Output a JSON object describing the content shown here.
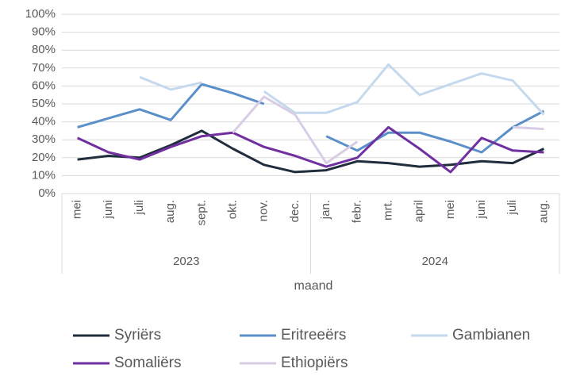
{
  "chart_data": {
    "type": "line",
    "x_label": "maand",
    "categories": [
      "mei",
      "juni",
      "juli",
      "aug.",
      "sept.",
      "okt.",
      "nov.",
      "dec.",
      "jan.",
      "febr.",
      "mrt.",
      "april",
      "mei",
      "juni",
      "juli",
      "aug."
    ],
    "years": [
      "2023",
      "2024"
    ],
    "series": [
      {
        "name": "Syriërs",
        "color": "#1f2d3d",
        "values": [
          19,
          21,
          20,
          27,
          35,
          25,
          16,
          12,
          13,
          18,
          17,
          15,
          16,
          18,
          17,
          25
        ]
      },
      {
        "name": "Eritreeërs",
        "color": "#5b8fc9",
        "values": [
          37,
          42,
          47,
          41,
          61,
          56,
          50,
          null,
          32,
          24,
          34,
          34,
          29,
          23,
          37,
          46
        ]
      },
      {
        "name": "Gambianen",
        "color": "#c5d9ee",
        "values": [
          null,
          null,
          65,
          58,
          62,
          null,
          57,
          45,
          45,
          51,
          72,
          55,
          61,
          67,
          63,
          44
        ]
      },
      {
        "name": "Somaliërs",
        "color": "#7030a0",
        "values": [
          31,
          23,
          19,
          26,
          32,
          34,
          26,
          21,
          15,
          20,
          37,
          25,
          12,
          31,
          24,
          23
        ]
      },
      {
        "name": "Ethiopiërs",
        "color": "#d9cde6",
        "values": [
          null,
          null,
          null,
          null,
          null,
          34,
          54,
          44,
          17,
          29,
          null,
          null,
          null,
          null,
          37,
          36
        ]
      }
    ],
    "ylim": [
      0,
      100
    ],
    "yticks": [
      {
        "value": 0,
        "label": "0%"
      },
      {
        "value": 10,
        "label": "10%"
      },
      {
        "value": 20,
        "label": "20%"
      },
      {
        "value": 30,
        "label": "30%"
      },
      {
        "value": 40,
        "label": "40%"
      },
      {
        "value": 50,
        "label": "50%"
      },
      {
        "value": 60,
        "label": "60%"
      },
      {
        "value": 70,
        "label": "70%"
      },
      {
        "value": 80,
        "label": "80%"
      },
      {
        "value": 90,
        "label": "90%"
      },
      {
        "value": 100,
        "label": "100%"
      }
    ],
    "grid": true
  }
}
